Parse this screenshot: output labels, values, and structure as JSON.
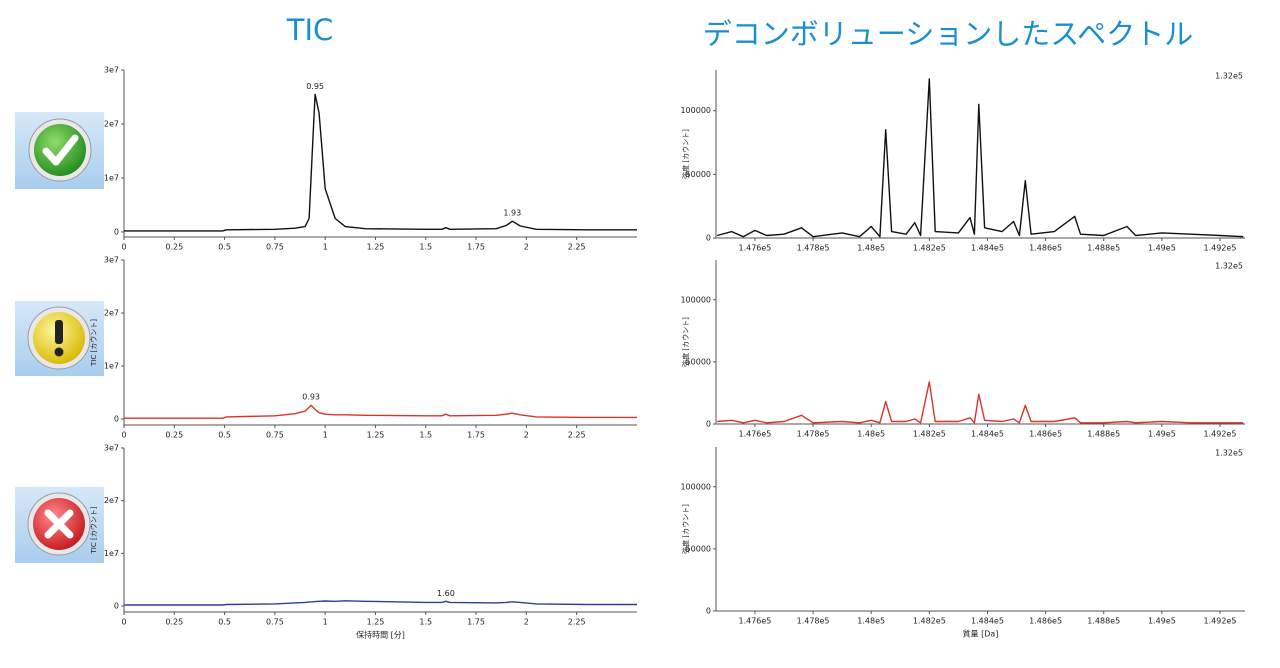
{
  "headings": {
    "left": "TIC",
    "right": "デコンボリューションしたスペクトル"
  },
  "chart_data": [
    {
      "type": "line",
      "x": [
        0,
        0.25,
        0.49,
        0.51,
        0.75,
        0.85,
        0.9,
        0.92,
        0.94,
        0.95,
        0.97,
        1.0,
        1.05,
        1.1,
        1.2,
        1.5,
        1.58,
        1.6,
        1.62,
        1.85,
        1.9,
        1.93,
        1.97,
        2.05,
        2.3,
        2.55
      ],
      "series": [
        {
          "color": "#111111",
          "values": [
            200000,
            200000,
            200000,
            400000,
            500000,
            700000,
            1000000,
            2500000,
            18000000,
            25500000,
            22000000,
            8000000,
            2500000,
            1000000,
            600000,
            500000,
            500000,
            800000,
            500000,
            600000,
            1200000,
            2000000,
            1100000,
            500000,
            400000,
            400000
          ]
        }
      ],
      "xlim": [
        0,
        2.55
      ],
      "xticks": [
        0,
        0.25,
        0.5,
        0.75,
        1,
        1.25,
        1.5,
        1.75,
        2,
        2.25
      ],
      "ylim": [
        -930000,
        30000000
      ],
      "yticks": [
        0,
        {
          "value": 10000000,
          "label": "1e7"
        },
        {
          "value": 20000000,
          "label": "2e7"
        },
        {
          "value": 30000000,
          "label": "3e7"
        }
      ],
      "annotations": [
        {
          "text": "0.95",
          "x": 0.95,
          "y": 25500000
        },
        {
          "text": "1.93",
          "x": 1.93,
          "y": 2000000
        }
      ]
    },
    {
      "type": "line",
      "x": [
        0,
        0.25,
        0.49,
        0.51,
        0.75,
        0.85,
        0.9,
        0.92,
        0.93,
        0.95,
        0.97,
        1.0,
        1.05,
        1.1,
        1.2,
        1.5,
        1.58,
        1.6,
        1.62,
        1.85,
        1.9,
        1.93,
        1.97,
        2.05,
        2.3,
        2.55
      ],
      "series": [
        {
          "color": "#d9342b",
          "values": [
            150000,
            150000,
            150000,
            400000,
            600000,
            1000000,
            1500000,
            2200000,
            2600000,
            1800000,
            1200000,
            900000,
            800000,
            800000,
            700000,
            600000,
            600000,
            900000,
            600000,
            700000,
            900000,
            1100000,
            800000,
            400000,
            300000,
            300000
          ]
        }
      ],
      "xlim": [
        0,
        2.55
      ],
      "xticks": [
        0,
        0.25,
        0.5,
        0.75,
        1,
        1.25,
        1.5,
        1.75,
        2,
        2.25
      ],
      "ylim": [
        -1130000,
        30000000
      ],
      "yticks": [
        0,
        {
          "value": 10000000,
          "label": "1e7"
        },
        {
          "value": 20000000,
          "label": "2e7"
        },
        {
          "value": 30000000,
          "label": "3e7"
        }
      ],
      "y_label": "TIC [カウント]",
      "annotations": [
        {
          "text": "0.93",
          "x": 0.93,
          "y": 2600000
        }
      ]
    },
    {
      "type": "line",
      "x": [
        0,
        0.25,
        0.49,
        0.51,
        0.75,
        0.85,
        0.9,
        0.92,
        0.94,
        0.95,
        0.97,
        1.0,
        1.05,
        1.1,
        1.2,
        1.5,
        1.58,
        1.6,
        1.62,
        1.85,
        1.9,
        1.93,
        1.97,
        2.05,
        2.3,
        2.55
      ],
      "series": [
        {
          "color": "#2b3f93",
          "values": [
            200000,
            200000,
            200000,
            300000,
            400000,
            600000,
            700000,
            750000,
            800000,
            850000,
            900000,
            950000,
            900000,
            1000000,
            900000,
            700000,
            700000,
            900000,
            700000,
            600000,
            700000,
            800000,
            700000,
            400000,
            300000,
            300000
          ]
        }
      ],
      "xlim": [
        0,
        2.55
      ],
      "xticks": [
        0,
        0.25,
        0.5,
        0.75,
        1,
        1.25,
        1.5,
        1.75,
        2,
        2.25
      ],
      "ylim": [
        -1130000,
        30000000
      ],
      "yticks": [
        0,
        {
          "value": 10000000,
          "label": "1e7"
        },
        {
          "value": 20000000,
          "label": "2e7"
        },
        {
          "value": 30000000,
          "label": "3e7"
        }
      ],
      "y_label": "TIC [カウント]",
      "x_label": "保持時間 [分]",
      "annotations": [
        {
          "text": "1.60",
          "x": 1.6,
          "y": 900000
        }
      ]
    },
    {
      "type": "line",
      "x": [
        147470,
        147520,
        147560,
        147600,
        147640,
        147700,
        147760,
        147800,
        147900,
        147960,
        148000,
        148030,
        148050,
        148070,
        148120,
        148150,
        148170,
        148200,
        148220,
        148300,
        148340,
        148355,
        148370,
        148390,
        148450,
        148490,
        148510,
        148530,
        148550,
        148630,
        148700,
        148720,
        148800,
        148880,
        148910,
        149000,
        149100,
        149200,
        149280
      ],
      "series": [
        {
          "color": "#111111",
          "values": [
            2000,
            5000,
            1000,
            6000,
            2000,
            3000,
            8000,
            1000,
            4000,
            1000,
            9000,
            1000,
            85000,
            5000,
            3000,
            12000,
            2000,
            125000,
            5000,
            4000,
            16000,
            3000,
            105000,
            8000,
            5000,
            13000,
            2000,
            45000,
            3000,
            5000,
            17000,
            3000,
            2000,
            9000,
            2000,
            4000,
            3000,
            2000,
            1000
          ]
        }
      ],
      "xlim": [
        147466,
        149286
      ],
      "xticks": [
        {
          "value": 147600,
          "label": "1.476e5"
        },
        {
          "value": 147800,
          "label": "1.478e5"
        },
        {
          "value": 148000,
          "label": "1.48e5"
        },
        {
          "value": 148200,
          "label": "1.482e5"
        },
        {
          "value": 148400,
          "label": "1.484e5"
        },
        {
          "value": 148600,
          "label": "1.486e5"
        },
        {
          "value": 148800,
          "label": "1.488e5"
        },
        {
          "value": 149000,
          "label": "1.49e5"
        },
        {
          "value": 149200,
          "label": "1.492e5"
        }
      ],
      "ylim": [
        0,
        132000
      ],
      "yticks": [
        0,
        50000,
        100000
      ],
      "y_label": "強度 [カウント]",
      "corner_label": "1.32e5"
    },
    {
      "type": "line",
      "x": [
        147470,
        147520,
        147560,
        147600,
        147640,
        147700,
        147760,
        147800,
        147900,
        147960,
        148000,
        148030,
        148050,
        148070,
        148120,
        148150,
        148170,
        148200,
        148220,
        148300,
        148340,
        148355,
        148370,
        148390,
        148450,
        148490,
        148510,
        148530,
        148550,
        148630,
        148700,
        148720,
        148800,
        148880,
        148910,
        149000,
        149100,
        149200,
        149280
      ],
      "series": [
        {
          "color": "#d9342b",
          "values": [
            2000,
            3000,
            1000,
            3000,
            1000,
            2000,
            7000,
            1000,
            2000,
            1000,
            3000,
            1000,
            18000,
            2000,
            2000,
            4000,
            1000,
            34000,
            2000,
            2000,
            5000,
            1000,
            24000,
            3000,
            2000,
            4000,
            1000,
            15000,
            2000,
            2000,
            5000,
            1000,
            1000,
            2000,
            1000,
            2000,
            1000,
            1000,
            1000
          ]
        }
      ],
      "xlim": [
        147466,
        149286
      ],
      "xticks": [
        {
          "value": 147600,
          "label": "1.476e5"
        },
        {
          "value": 147800,
          "label": "1.478e5"
        },
        {
          "value": 148000,
          "label": "1.48e5"
        },
        {
          "value": 148200,
          "label": "1.482e5"
        },
        {
          "value": 148400,
          "label": "1.484e5"
        },
        {
          "value": 148600,
          "label": "1.486e5"
        },
        {
          "value": 148800,
          "label": "1.488e5"
        },
        {
          "value": 149000,
          "label": "1.49e5"
        },
        {
          "value": 149200,
          "label": "1.492e5"
        }
      ],
      "ylim": [
        0,
        132000
      ],
      "yticks": [
        0,
        50000,
        100000
      ],
      "y_label": "強度 [カウント]",
      "corner_label": "1.32e5"
    },
    {
      "type": "line",
      "xlim": [
        147466,
        149286
      ],
      "xticks": [
        {
          "value": 147600,
          "label": "1.476e5"
        },
        {
          "value": 147800,
          "label": "1.478e5"
        },
        {
          "value": 148000,
          "label": "1.48e5"
        },
        {
          "value": 148200,
          "label": "1.482e5"
        },
        {
          "value": 148400,
          "label": "1.484e5"
        },
        {
          "value": 148600,
          "label": "1.486e5"
        },
        {
          "value": 148800,
          "label": "1.488e5"
        },
        {
          "value": 149000,
          "label": "1.49e5"
        },
        {
          "value": 149200,
          "label": "1.492e5"
        }
      ],
      "ylim": [
        0,
        132000
      ],
      "yticks": [
        0,
        50000,
        100000
      ],
      "y_label": "強度 [カウント]",
      "x_label": "質量 [Da]",
      "corner_label": "1.32e5"
    }
  ]
}
